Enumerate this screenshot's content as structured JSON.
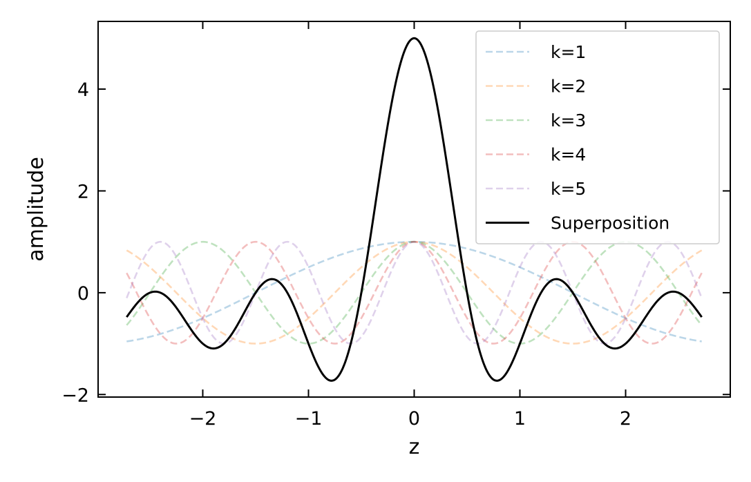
{
  "chart_data": {
    "type": "line",
    "xlabel": "z",
    "ylabel": "amplitude",
    "xlim": [
      -2.99,
      2.99
    ],
    "ylim": [
      -2.05,
      5.33
    ],
    "x_ticks": [
      -2,
      -1,
      0,
      1,
      2
    ],
    "x_tick_labels": [
      "−2",
      "−1",
      "0",
      "1",
      "2"
    ],
    "y_ticks": [
      -2,
      0,
      2,
      4
    ],
    "y_tick_labels": [
      "−2",
      "0",
      "2",
      "4"
    ],
    "x_range": [
      -2.72,
      2.72
    ],
    "function": "cos(k*pi*z/3)",
    "legend_position": "upper-right",
    "series": [
      {
        "name": "k=1",
        "k": 1,
        "color": "#1f77b4",
        "style": "dashed",
        "alpha": 0.3
      },
      {
        "name": "k=2",
        "k": 2,
        "color": "#ff7f0e",
        "style": "dashed",
        "alpha": 0.3
      },
      {
        "name": "k=3",
        "k": 3,
        "color": "#2ca02c",
        "style": "dashed",
        "alpha": 0.3
      },
      {
        "name": "k=4",
        "k": 4,
        "color": "#d62728",
        "style": "dashed",
        "alpha": 0.3
      },
      {
        "name": "k=5",
        "k": 5,
        "color": "#9467bd",
        "style": "dashed",
        "alpha": 0.3
      },
      {
        "name": "Superposition",
        "k": "sum",
        "color": "#000000",
        "style": "solid",
        "alpha": 1
      }
    ],
    "grid": false
  }
}
